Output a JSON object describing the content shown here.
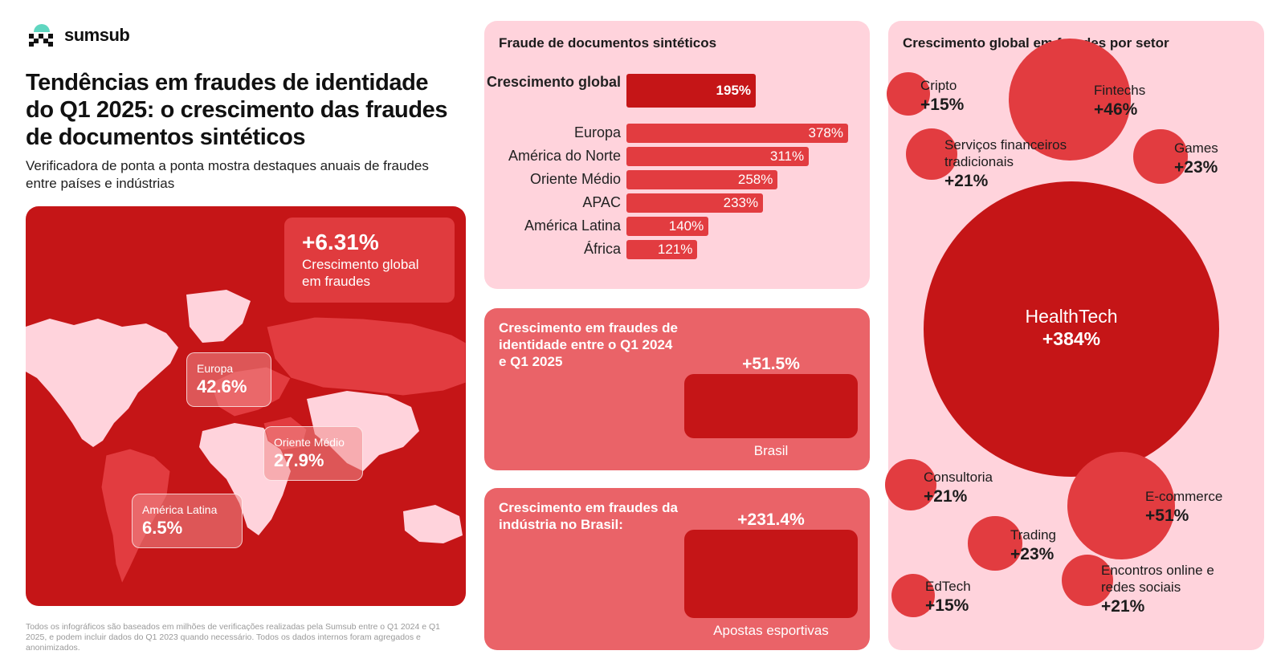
{
  "brand": {
    "name": "sumsub",
    "accent": "#5fd6c0"
  },
  "header": {
    "title": "Tendências em fraudes de identidade do Q1 2025: o crescimento das fraudes de documentos sintéticos",
    "subtitle": "Verificadora de ponta a ponta mostra destaques anuais de fraudes entre países e indústrias"
  },
  "map": {
    "global_value": "+6.31%",
    "global_label": "Crescimento global em fraudes",
    "regions": [
      {
        "name": "Europa",
        "value": "42.6%"
      },
      {
        "name": "Oriente Médio",
        "value": "27.9%"
      },
      {
        "name": "América Latina",
        "value": "6.5%"
      }
    ]
  },
  "footnote": "Todos os infográficos são baseados em milhões de verificações realizadas pela Sumsub entre o Q1 2024 e Q1 2025, e podem incluir dados do Q1 2023 quando necessário. Todos os dados internos foram agregados e anonimizados.",
  "identity_panel": {
    "text": "Crescimento em fraudes de identidade entre o Q1 2024 e Q1 2025",
    "value": "+51.5%",
    "caption": "Brasil"
  },
  "industry_panel": {
    "text": "Crescimento em fraudes da indústria no Brasil:",
    "value": "+231.4%",
    "caption": "Apostas esportivas"
  },
  "colors": {
    "dark_red": "#c51517",
    "red": "#e23c40",
    "pink": "#ffd3dc",
    "salmon": "#ea6368"
  },
  "chart_data": [
    {
      "type": "bar",
      "orientation": "horizontal",
      "title": "Fraude de documentos sintéticos",
      "highlight": {
        "label": "Crescimento global",
        "value": 195,
        "value_label": "195%"
      },
      "categories": [
        "Europa",
        "América do Norte",
        "Oriente Médio",
        "APAC",
        "América Latina",
        "África"
      ],
      "values": [
        378,
        311,
        258,
        233,
        140,
        121
      ],
      "value_labels": [
        "378%",
        "311%",
        "258%",
        "233%",
        "140%",
        "121%"
      ]
    },
    {
      "type": "bubble",
      "title": "Crescimento global em fraudes por setor",
      "items": [
        {
          "name": "Cripto",
          "value": 15,
          "value_label": "+15%"
        },
        {
          "name": "Fintechs",
          "value": 46,
          "value_label": "+46%"
        },
        {
          "name": "Serviços financeiros tradicionais",
          "value": 21,
          "value_label": "+21%"
        },
        {
          "name": "Games",
          "value": 23,
          "value_label": "+23%"
        },
        {
          "name": "HealthTech",
          "value": 384,
          "value_label": "+384%"
        },
        {
          "name": "Consultoria",
          "value": 21,
          "value_label": "+21%"
        },
        {
          "name": "E-commerce",
          "value": 51,
          "value_label": "+51%"
        },
        {
          "name": "Trading",
          "value": 23,
          "value_label": "+23%"
        },
        {
          "name": "EdTech",
          "value": 15,
          "value_label": "+15%"
        },
        {
          "name": "Encontros online e redes sociais",
          "value": 21,
          "value_label": "+21%"
        }
      ]
    }
  ]
}
